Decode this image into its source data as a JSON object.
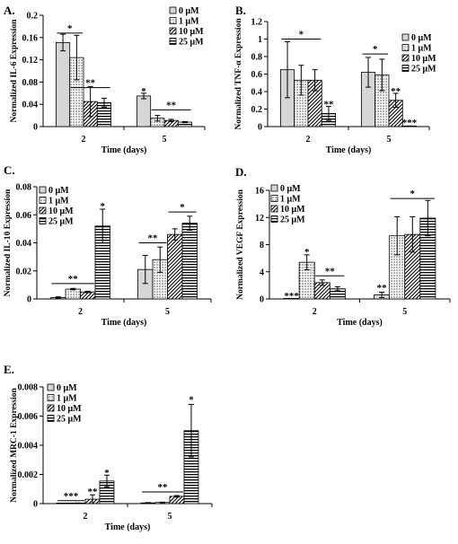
{
  "colors": {
    "ink": "#000000",
    "solid_fill": "#d6d6d6",
    "background": "#ffffff"
  },
  "legend": [
    "0 μM",
    "1 μM",
    "10 μM",
    "25 μM"
  ],
  "chart_data": [
    {
      "id": "A",
      "panel_label": "A.",
      "type": "bar",
      "ylabel": "Normalized IL-6 Expression",
      "xlabel": "Time (days)",
      "categories": [
        "2",
        "5"
      ],
      "ylim": [
        0,
        0.2
      ],
      "yticks": [
        0,
        0.04,
        0.08,
        0.12,
        0.16,
        0.2
      ],
      "ytick_labels": [
        "0",
        "0.04",
        "0.08",
        "0.12",
        "0.16",
        "0.2"
      ],
      "legend_position": "top-right",
      "series": [
        {
          "name": "0 μM",
          "values": [
            0.151,
            0.055
          ],
          "errors": [
            0.015,
            0.005
          ]
        },
        {
          "name": "1 μM",
          "values": [
            0.124,
            0.015
          ],
          "errors": [
            0.04,
            0.005
          ]
        },
        {
          "name": "10 μM",
          "values": [
            0.045,
            0.011
          ],
          "errors": [
            0.027,
            0.002
          ]
        },
        {
          "name": "25 μM",
          "values": [
            0.043,
            0.008
          ],
          "errors": [
            0.008,
            0.001
          ]
        }
      ],
      "annotations": [
        {
          "text": "*",
          "line": [
            0,
            0,
            0,
            1
          ],
          "y": 0.168
        },
        {
          "text": "**",
          "line": [
            0,
            1,
            0,
            3
          ],
          "y": 0.07
        },
        {
          "text": "*",
          "bar": [
            1,
            0
          ],
          "y": 0.063
        },
        {
          "text": "**",
          "line": [
            1,
            1,
            1,
            3
          ],
          "y": 0.03
        }
      ]
    },
    {
      "id": "B",
      "panel_label": "B.",
      "type": "bar",
      "ylabel": "Normalized TNF-α Expression",
      "xlabel": "Time (days)",
      "categories": [
        "2",
        "5"
      ],
      "ylim": [
        0,
        1.2
      ],
      "yticks": [
        0,
        0.2,
        0.4,
        0.6,
        0.8,
        1.0,
        1.2
      ],
      "ytick_labels": [
        "0",
        "0.2",
        "0.4",
        "0.6",
        "0.8",
        "1",
        "1.2"
      ],
      "legend_position": "top-right",
      "series": [
        {
          "name": "0 μM",
          "values": [
            0.65,
            0.62
          ],
          "errors": [
            0.32,
            0.17
          ]
        },
        {
          "name": "1 μM",
          "values": [
            0.53,
            0.59
          ],
          "errors": [
            0.17,
            0.18
          ]
        },
        {
          "name": "10 μM",
          "values": [
            0.53,
            0.3
          ],
          "errors": [
            0.12,
            0.08
          ]
        },
        {
          "name": "25 μM",
          "values": [
            0.15,
            0.005
          ],
          "errors": [
            0.08,
            0.002
          ]
        }
      ],
      "annotations": [
        {
          "text": "*",
          "line": [
            0,
            0,
            0,
            2
          ],
          "y": 1.0
        },
        {
          "text": "**",
          "bar": [
            0,
            3
          ],
          "y": 0.25
        },
        {
          "text": "*",
          "line": [
            1,
            0,
            1,
            1
          ],
          "y": 0.83
        },
        {
          "text": "**",
          "bar": [
            1,
            2
          ],
          "y": 0.4
        },
        {
          "text": "***",
          "bar": [
            1,
            3
          ],
          "y": 0.04
        }
      ]
    },
    {
      "id": "C",
      "panel_label": "C.",
      "type": "bar",
      "ylabel": "Normalized IL-10 Expression",
      "xlabel": "Time (days)",
      "categories": [
        "2",
        "5"
      ],
      "ylim": [
        0,
        0.08
      ],
      "yticks": [
        0,
        0.02,
        0.04,
        0.06,
        0.08
      ],
      "ytick_labels": [
        "0",
        "0.02",
        "0.04",
        "0.06",
        "0.08"
      ],
      "legend_position": "top-left",
      "series": [
        {
          "name": "0 μM",
          "values": [
            0.001,
            0.021
          ],
          "errors": [
            0.0005,
            0.01
          ]
        },
        {
          "name": "1 μM",
          "values": [
            0.007,
            0.028
          ],
          "errors": [
            0.0005,
            0.009
          ]
        },
        {
          "name": "10 μM",
          "values": [
            0.005,
            0.046
          ],
          "errors": [
            0.0005,
            0.004
          ]
        },
        {
          "name": "25 μM",
          "values": [
            0.052,
            0.054
          ],
          "errors": [
            0.012,
            0.005
          ]
        }
      ],
      "annotations": [
        {
          "text": "**",
          "line": [
            0,
            0,
            0,
            2
          ],
          "y": 0.011
        },
        {
          "text": "*",
          "bar": [
            0,
            3
          ],
          "y": 0.066
        },
        {
          "text": "**",
          "line": [
            1,
            0,
            1,
            1
          ],
          "y": 0.04
        },
        {
          "text": "*",
          "line": [
            1,
            2,
            1,
            3
          ],
          "y": 0.062
        }
      ]
    },
    {
      "id": "D",
      "panel_label": "D.",
      "type": "bar",
      "ylabel": "Normalized VEGF Expression",
      "xlabel": "Time (days)",
      "categories": [
        "2",
        "5"
      ],
      "ylim": [
        0,
        16
      ],
      "yticks": [
        0,
        4,
        8,
        12,
        16
      ],
      "ytick_labels": [
        "0",
        "4",
        "8",
        "12",
        "16"
      ],
      "legend_position": "top-left",
      "series": [
        {
          "name": "0 μM",
          "values": [
            0.05,
            0.6
          ],
          "errors": [
            0.02,
            0.4
          ]
        },
        {
          "name": "1 μM",
          "values": [
            5.4,
            9.3
          ],
          "errors": [
            1.1,
            2.8
          ]
        },
        {
          "name": "10 μM",
          "values": [
            2.4,
            9.5
          ],
          "errors": [
            0.4,
            2.6
          ]
        },
        {
          "name": "25 μM",
          "values": [
            1.5,
            11.9
          ],
          "errors": [
            0.3,
            2.6
          ]
        }
      ],
      "annotations": [
        {
          "text": "***",
          "bar": [
            0,
            0
          ],
          "y": 0.4
        },
        {
          "text": "*",
          "bar": [
            0,
            1
          ],
          "y": 6.9
        },
        {
          "text": "**",
          "line": [
            0,
            2,
            0,
            3
          ],
          "y": 3.4
        },
        {
          "text": "**",
          "bar": [
            1,
            0
          ],
          "y": 1.6
        },
        {
          "text": "*",
          "line": [
            1,
            1,
            1,
            3
          ],
          "y": 14.8
        }
      ]
    },
    {
      "id": "E",
      "panel_label": "E.",
      "type": "bar",
      "ylabel": "Normalized MRC-1 Expression",
      "xlabel": "Time (days)",
      "categories": [
        "2",
        "5"
      ],
      "ylim": [
        0,
        0.008
      ],
      "yticks": [
        0,
        0.002,
        0.004,
        0.006,
        0.008
      ],
      "ytick_labels": [
        "0",
        "0.002",
        "0.004",
        "0.006",
        "0.008"
      ],
      "legend_position": "top-left",
      "series": [
        {
          "name": "0 μM",
          "values": [
            2e-05,
            5e-05
          ],
          "errors": [
            1e-05,
            2e-05
          ]
        },
        {
          "name": "1 μM",
          "values": [
            3e-05,
            8e-05
          ],
          "errors": [
            1e-05,
            2e-05
          ]
        },
        {
          "name": "10 μM",
          "values": [
            0.0003,
            0.0005
          ],
          "errors": [
            0.0003,
            5e-05
          ]
        },
        {
          "name": "25 μM",
          "values": [
            0.00155,
            0.005
          ],
          "errors": [
            0.0004,
            0.0018
          ]
        }
      ],
      "annotations": [
        {
          "text": "***",
          "line": [
            0,
            0,
            0,
            1
          ],
          "y": 0.0002
        },
        {
          "text": "**",
          "bar": [
            0,
            2
          ],
          "y": 0.0008
        },
        {
          "text": "*",
          "bar": [
            0,
            3
          ],
          "y": 0.0021
        },
        {
          "text": "**",
          "line": [
            1,
            0,
            1,
            2
          ],
          "y": 0.0008
        },
        {
          "text": "*",
          "bar": [
            1,
            3
          ],
          "y": 0.0071
        }
      ]
    }
  ]
}
